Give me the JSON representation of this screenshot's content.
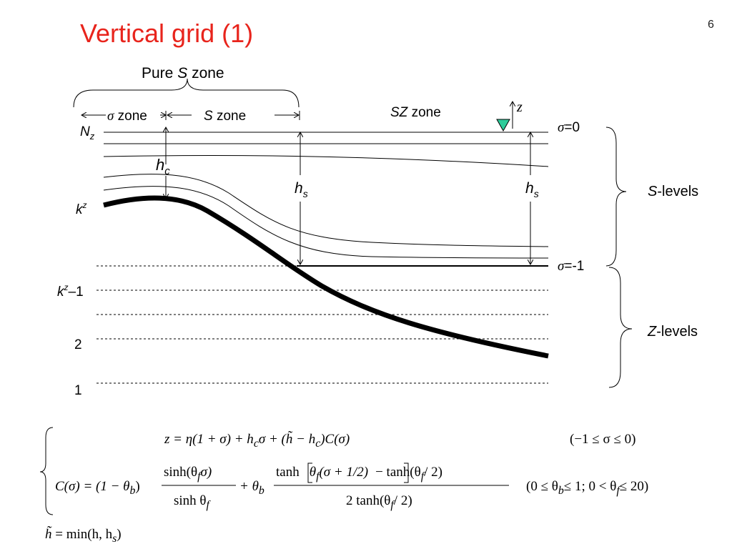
{
  "title": "Vertical grid (1)",
  "slide_number": "6",
  "labels": {
    "pure_s_zone_word": "Pure",
    "pure_s_zone_s": "S",
    "pure_s_zone_zone": "zone",
    "sigma_zone_symbol": "σ",
    "sigma_zone_word": "zone",
    "s_zone_s": "S",
    "s_zone_word": "zone",
    "sz_zone_sz": "SZ",
    "sz_zone_word": "zone",
    "z_axis": "z",
    "Nz_N": "N",
    "Nz_sub": "z",
    "hc_h": "h",
    "hc_sub": "c",
    "hs_h": "h",
    "hs_sub": "s",
    "kz_k": "k",
    "kz_sup": "z",
    "kz_minus_k": "k",
    "kz_minus_sup": "z",
    "kz_minus_rest": "–1",
    "level_2": "2",
    "level_1": "1",
    "sigma0_symbol": "σ",
    "sigma0_value": "=0",
    "sigma_minus1_symbol": "σ",
    "sigma_minus1_value": "=-1",
    "s_levels_s": "S",
    "s_levels_rest": "-levels",
    "z_levels_z": "Z",
    "z_levels_rest": "-levels"
  },
  "equations": {
    "eq1_lhs": "z = η(1 + σ) + h",
    "eq1_sub_c1": "c",
    "eq1_mid": "σ + (",
    "eq1_htilde": "h̃",
    "eq1_minus": " − h",
    "eq1_sub_c2": "c",
    "eq1_end": ")C(σ)",
    "eq1_condition": "(−1 ≤ σ ≤ 0)",
    "eq2_lhs": "C(σ) = (1 − θ",
    "eq2_sub_b": "b",
    "eq2_close": ")",
    "eq2_frac1_num": "sinh(θ",
    "eq2_frac1_num_sub": "f",
    "eq2_frac1_num_end": "σ)",
    "eq2_frac1_den": "sinh θ",
    "eq2_frac1_den_sub": "f",
    "eq2_plus": "+ θ",
    "eq2_plus_sub": "b",
    "eq2_frac2_num_a": "tanh",
    "eq2_frac2_num_b": "θ",
    "eq2_frac2_num_b_sub": "f",
    "eq2_frac2_num_c": "(σ + 1/2)",
    "eq2_frac2_num_d": "− tanh(θ",
    "eq2_frac2_num_d_sub": "f",
    "eq2_frac2_num_e": "/ 2)",
    "eq2_frac2_den": "2 tanh(θ",
    "eq2_frac2_den_sub": "f",
    "eq2_frac2_den_end": "/ 2)",
    "eq2_condition": "(0 ≤ θ",
    "eq2_condition_sub1": "b",
    "eq2_condition_mid": "≤ 1;   0 < θ",
    "eq2_condition_sub2": "f",
    "eq2_condition_end": "≤ 20)",
    "eq3_lhs": "h̃",
    "eq3_rhs": "= min(h, h",
    "eq3_sub": "s",
    "eq3_end": ")"
  },
  "colors": {
    "title": "#e8241c",
    "surface_marker": "#2ecc9a",
    "lines": "#000000"
  }
}
